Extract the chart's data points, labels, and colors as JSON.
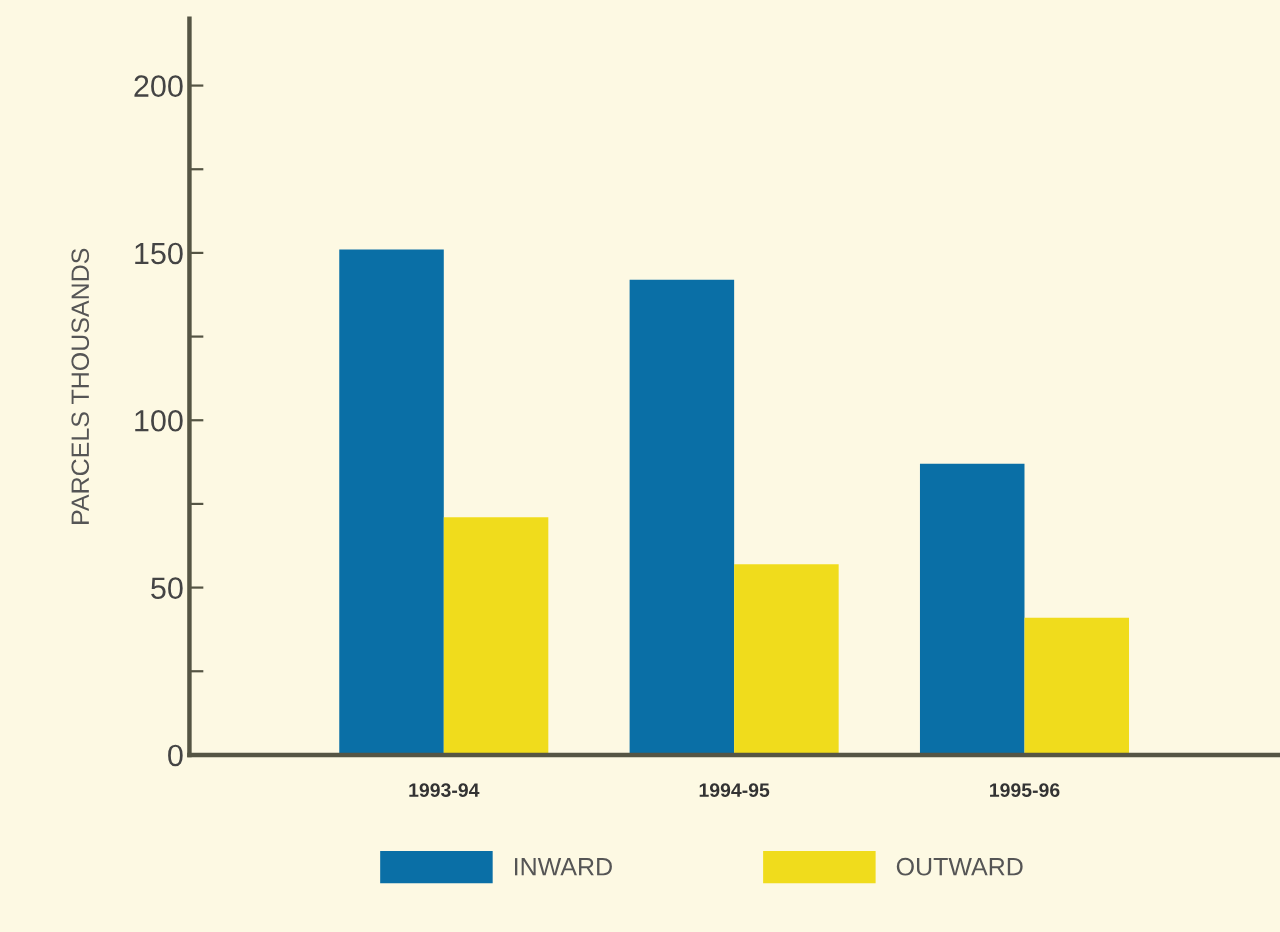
{
  "chart_data": {
    "type": "bar",
    "ylabel": "PARCELS THOUSANDS",
    "categories": [
      "1993-94",
      "1994-95",
      "1995-96"
    ],
    "series": [
      {
        "name": "INWARD",
        "color": "#0a6fa6",
        "values": [
          151,
          142,
          87
        ]
      },
      {
        "name": "OUTWARD",
        "color": "#f0dc1c",
        "values": [
          71,
          57,
          41
        ]
      }
    ],
    "ylim": [
      0,
      220
    ],
    "yticks": [
      0,
      {
        "value": 25,
        "label": null
      },
      50,
      {
        "value": 75,
        "label": null
      },
      100,
      {
        "value": 125,
        "label": null
      },
      150,
      {
        "value": 175,
        "label": null
      },
      200
    ],
    "grid": false,
    "legend": "bottom"
  }
}
